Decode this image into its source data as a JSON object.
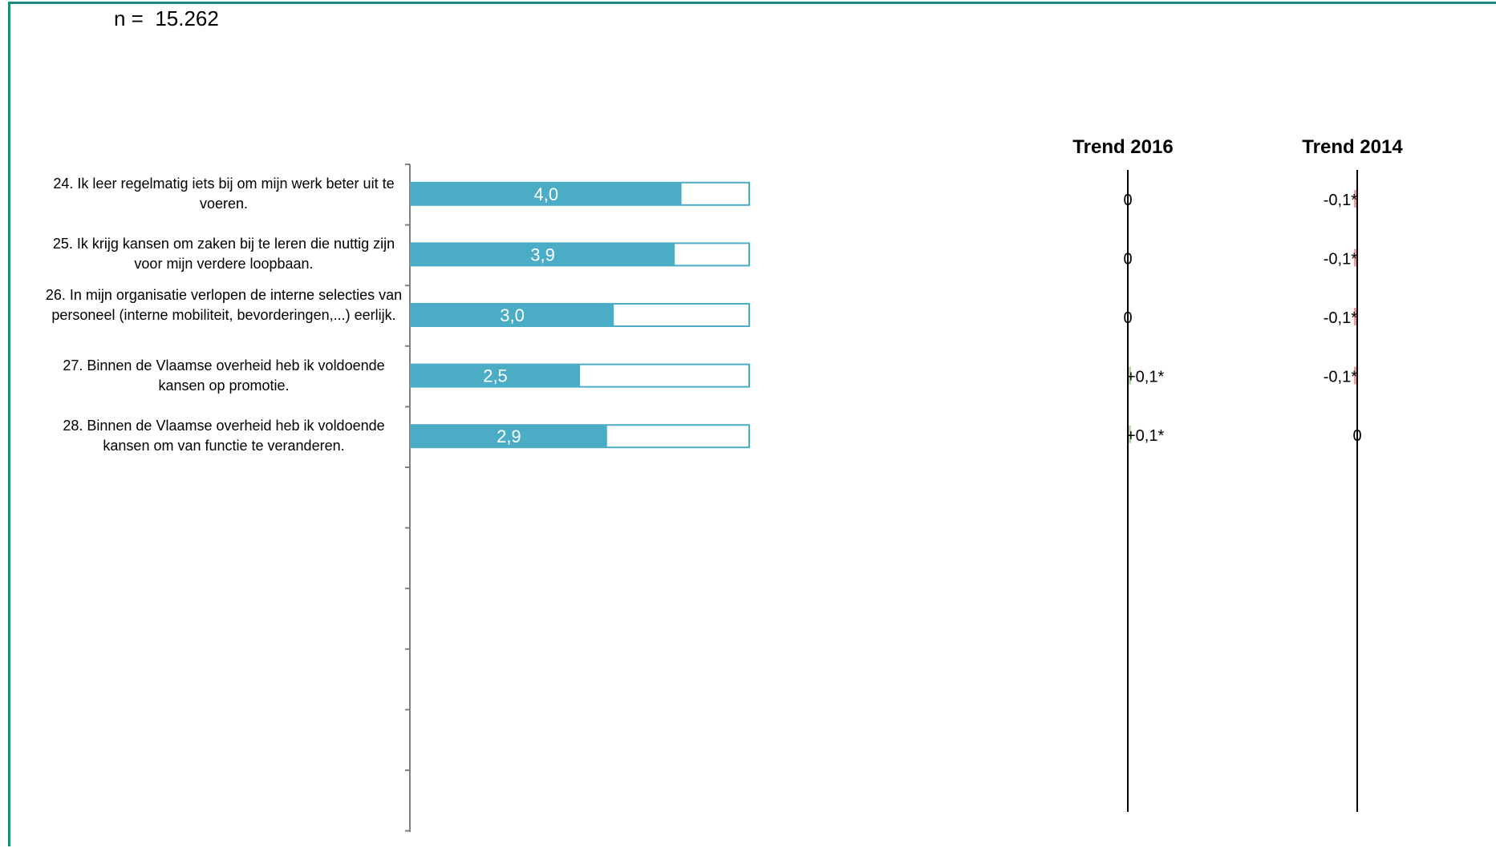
{
  "header": {
    "n_label": "n =",
    "n_value": "15.262"
  },
  "colors": {
    "bar_fill": "#4bacc6",
    "bar_border": "#4bacc6",
    "frame": "#1a8a80",
    "trend_positive": "#b5d3a8",
    "trend_negative": "#e6a5a5"
  },
  "chart_data": {
    "type": "bar",
    "orientation": "horizontal",
    "xlim": [
      0,
      5
    ],
    "categories": [
      "24. Ik leer regelmatig iets bij om mijn werk beter uit te voeren.",
      "25. Ik krijg kansen om zaken bij te leren die nuttig zijn voor mijn verdere loopbaan.",
      "26. In mijn organisatie verlopen de interne selecties van personeel (interne mobiliteit, bevorderingen,...) eerlijk.",
      "27. Binnen de Vlaamse overheid heb ik voldoende kansen op promotie.",
      "28. Binnen de Vlaamse overheid heb ik voldoende kansen om van functie te veranderen."
    ],
    "values": [
      4.0,
      3.9,
      3.0,
      2.5,
      2.9
    ],
    "value_labels": [
      "4,0",
      "3,9",
      "3,0",
      "2,5",
      "2,9"
    ],
    "trends": [
      {
        "name": "Trend 2016",
        "values": [
          0,
          0,
          0,
          0.1,
          0.1
        ],
        "labels": [
          "0",
          "0",
          "0",
          "+0,1*",
          "+0,1*"
        ]
      },
      {
        "name": "Trend 2014",
        "values": [
          -0.1,
          -0.1,
          -0.1,
          -0.1,
          0
        ],
        "labels": [
          "-0,1*",
          "-0,1*",
          "-0,1*",
          "-0,1*",
          "0"
        ]
      }
    ]
  }
}
